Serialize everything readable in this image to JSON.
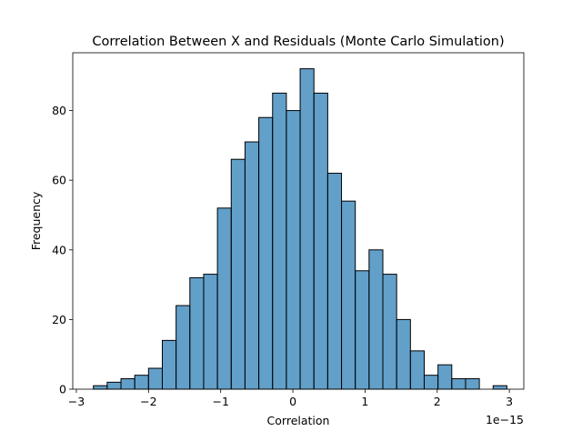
{
  "chart_data": {
    "type": "bar",
    "title": "Correlation Between X and Residuals (Monte Carlo Simulation)",
    "xlabel": "Correlation",
    "ylabel": "Frequency",
    "x_offset_text": "1e−15",
    "x_scale_factor": 1e-15,
    "xlim": [
      -3.05,
      3.2
    ],
    "ylim": [
      0,
      96.6
    ],
    "x_ticks": [
      -3,
      -2,
      -1,
      0,
      1,
      2,
      3
    ],
    "x_tick_labels": [
      "−3",
      "−2",
      "−1",
      "0",
      "1",
      "2",
      "3"
    ],
    "y_ticks": [
      0,
      20,
      40,
      60,
      80
    ],
    "y_tick_labels": [
      "0",
      "20",
      "40",
      "60",
      "80"
    ],
    "bin_edges": [
      -2.764,
      -2.573,
      -2.382,
      -2.191,
      -2,
      -1.809,
      -1.618,
      -1.427,
      -1.236,
      -1.045,
      -0.854,
      -0.663,
      -0.472,
      -0.281,
      -0.09,
      0.101,
      0.292,
      0.483,
      0.674,
      0.865,
      1.056,
      1.247,
      1.438,
      1.629,
      1.82,
      2.011,
      2.202,
      2.393,
      2.584,
      2.775,
      2.966
    ],
    "counts": [
      1,
      2,
      3,
      4,
      6,
      14,
      24,
      32,
      33,
      52,
      66,
      71,
      78,
      85,
      80,
      92,
      85,
      62,
      54,
      34,
      40,
      33,
      20,
      11,
      4,
      7,
      3,
      3,
      0,
      1
    ],
    "grid": false,
    "legend": "none",
    "colors": {
      "bar_fill": "#1f77b4",
      "bar_opacity": 0.7,
      "bar_edge": "#000000"
    }
  }
}
